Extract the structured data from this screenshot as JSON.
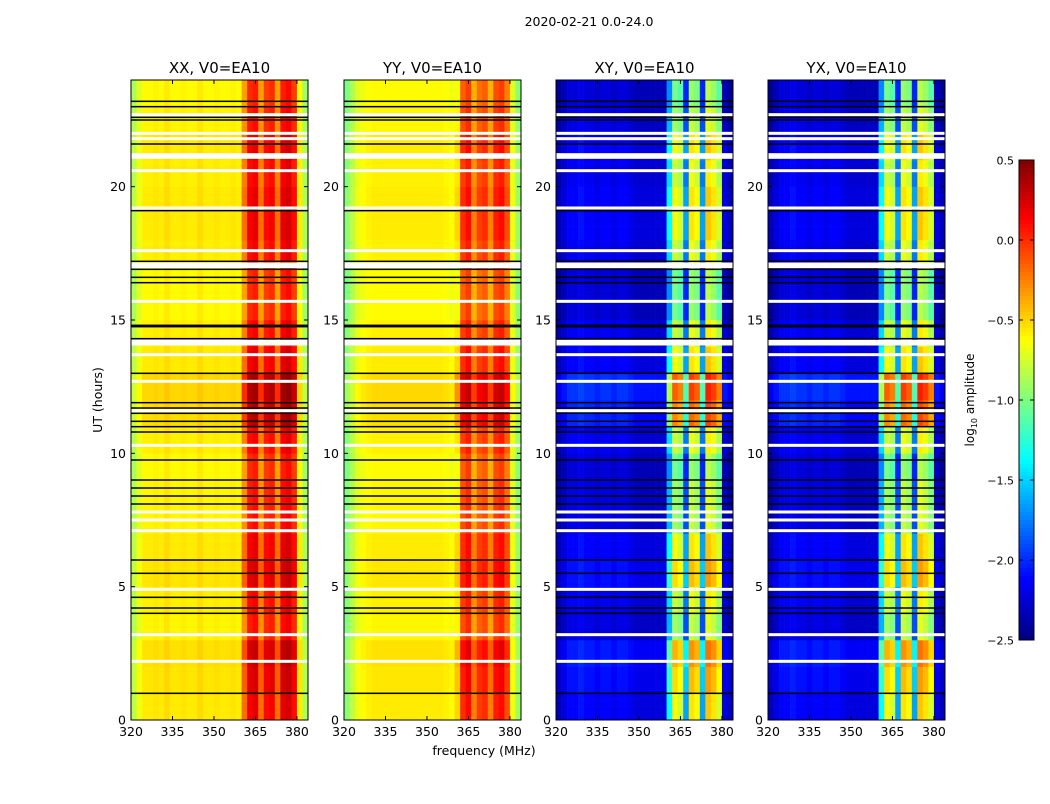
{
  "chart_data": {
    "type": "heatmap",
    "title": "2020-02-21 0.0-24.0",
    "xlabel": "frequency (MHz)",
    "ylabel": "UT (hours)",
    "xlim": [
      320,
      384
    ],
    "ylim": [
      0,
      24
    ],
    "xticks": [
      "320",
      "335",
      "350",
      "365",
      "380"
    ],
    "yticks": [
      "0",
      "5",
      "10",
      "15",
      "20"
    ],
    "freq_bin_mhz": 2,
    "time_bin_hours": 0.5,
    "colorbar": {
      "label_prefix": "log",
      "label_sub": "10",
      "label_suffix": " amplitude",
      "range": [
        -2.5,
        0.5
      ],
      "ticks": [
        "0.5",
        "0.0",
        "−0.5",
        "−1.0",
        "−1.5",
        "−2.0",
        "−2.5"
      ],
      "colormap": "jet"
    },
    "time_offsets_per_hour": [
      0.1,
      0.15,
      0.2,
      0,
      0.05,
      0.15,
      0.1,
      0,
      0,
      -0.05,
      0.05,
      0.25,
      0.3,
      0.1,
      0.05,
      -0.05,
      -0.05,
      0.05,
      0.1,
      0.1,
      0.05,
      0.1,
      0,
      -0.05
    ],
    "flagged_hours_white": [
      22.7,
      22.0,
      21.8,
      21.2,
      21.1,
      20.6,
      19.2,
      17.6,
      17.1,
      17.0,
      15.7,
      14.2,
      14.1,
      13.7,
      12.7,
      11.6,
      10.3,
      7.8,
      7.5,
      7.1,
      4.9,
      3.2,
      2.2
    ],
    "black_line_hours": [
      23.2,
      23.0,
      22.6,
      22.5,
      21.6,
      19.1,
      17.2,
      16.9,
      16.6,
      16.4,
      14.8,
      14.75,
      14.3,
      13.0,
      11.9,
      11.7,
      11.5,
      11.2,
      11.0,
      10.8,
      9.75,
      9.0,
      8.7,
      8.4,
      8.1,
      6.0,
      5.5,
      4.6,
      4.2,
      4.0,
      1.0
    ],
    "panels": [
      {
        "title": "XX, V0=EA10",
        "time_scale": 1,
        "freq_profile": [
          -0.85,
          -0.7,
          -0.6,
          -0.6,
          -0.58,
          -0.6,
          -0.55,
          -0.6,
          -0.6,
          -0.58,
          -0.6,
          -0.6,
          -0.55,
          -0.6,
          -0.6,
          -0.58,
          -0.6,
          -0.6,
          -0.58,
          -0.6,
          -0.3,
          0.05,
          0.1,
          -0.3,
          0.0,
          0.05,
          -0.3,
          0.1,
          0.15,
          0.0,
          -0.6,
          -0.9
        ]
      },
      {
        "title": "YY, V0=EA10",
        "time_scale": 1,
        "freq_profile": [
          -1.0,
          -0.85,
          -0.7,
          -0.65,
          -0.62,
          -0.6,
          -0.6,
          -0.6,
          -0.6,
          -0.6,
          -0.6,
          -0.6,
          -0.6,
          -0.6,
          -0.6,
          -0.6,
          -0.6,
          -0.6,
          -0.62,
          -0.65,
          -0.6,
          -0.1,
          0.0,
          -0.35,
          -0.15,
          -0.1,
          -0.35,
          -0.05,
          0.0,
          -0.2,
          -0.7,
          -0.95
        ]
      },
      {
        "title": "XY, V0=EA10",
        "time_scale": 2.5,
        "freq_profile": [
          -2.4,
          -2.3,
          -2.2,
          -2.2,
          -2.15,
          -2.2,
          -2.2,
          -2.25,
          -2.2,
          -2.2,
          -2.25,
          -2.2,
          -2.2,
          -2.25,
          -2.3,
          -2.3,
          -2.3,
          -2.3,
          -2.3,
          -2.3,
          -1.6,
          -0.9,
          -1.0,
          -1.9,
          -0.8,
          -0.9,
          -1.9,
          -0.7,
          -0.8,
          -1.0,
          -2.3,
          -2.4
        ]
      },
      {
        "title": "YX, V0=EA10",
        "time_scale": 2.5,
        "freq_profile": [
          -2.4,
          -2.3,
          -2.2,
          -2.2,
          -2.15,
          -2.2,
          -2.2,
          -2.25,
          -2.2,
          -2.2,
          -2.25,
          -2.2,
          -2.2,
          -2.25,
          -2.3,
          -2.3,
          -2.3,
          -2.3,
          -2.3,
          -2.3,
          -1.6,
          -0.9,
          -1.0,
          -1.9,
          -0.8,
          -0.9,
          -1.9,
          -0.7,
          -0.8,
          -1.0,
          -2.3,
          -2.4
        ]
      }
    ]
  }
}
